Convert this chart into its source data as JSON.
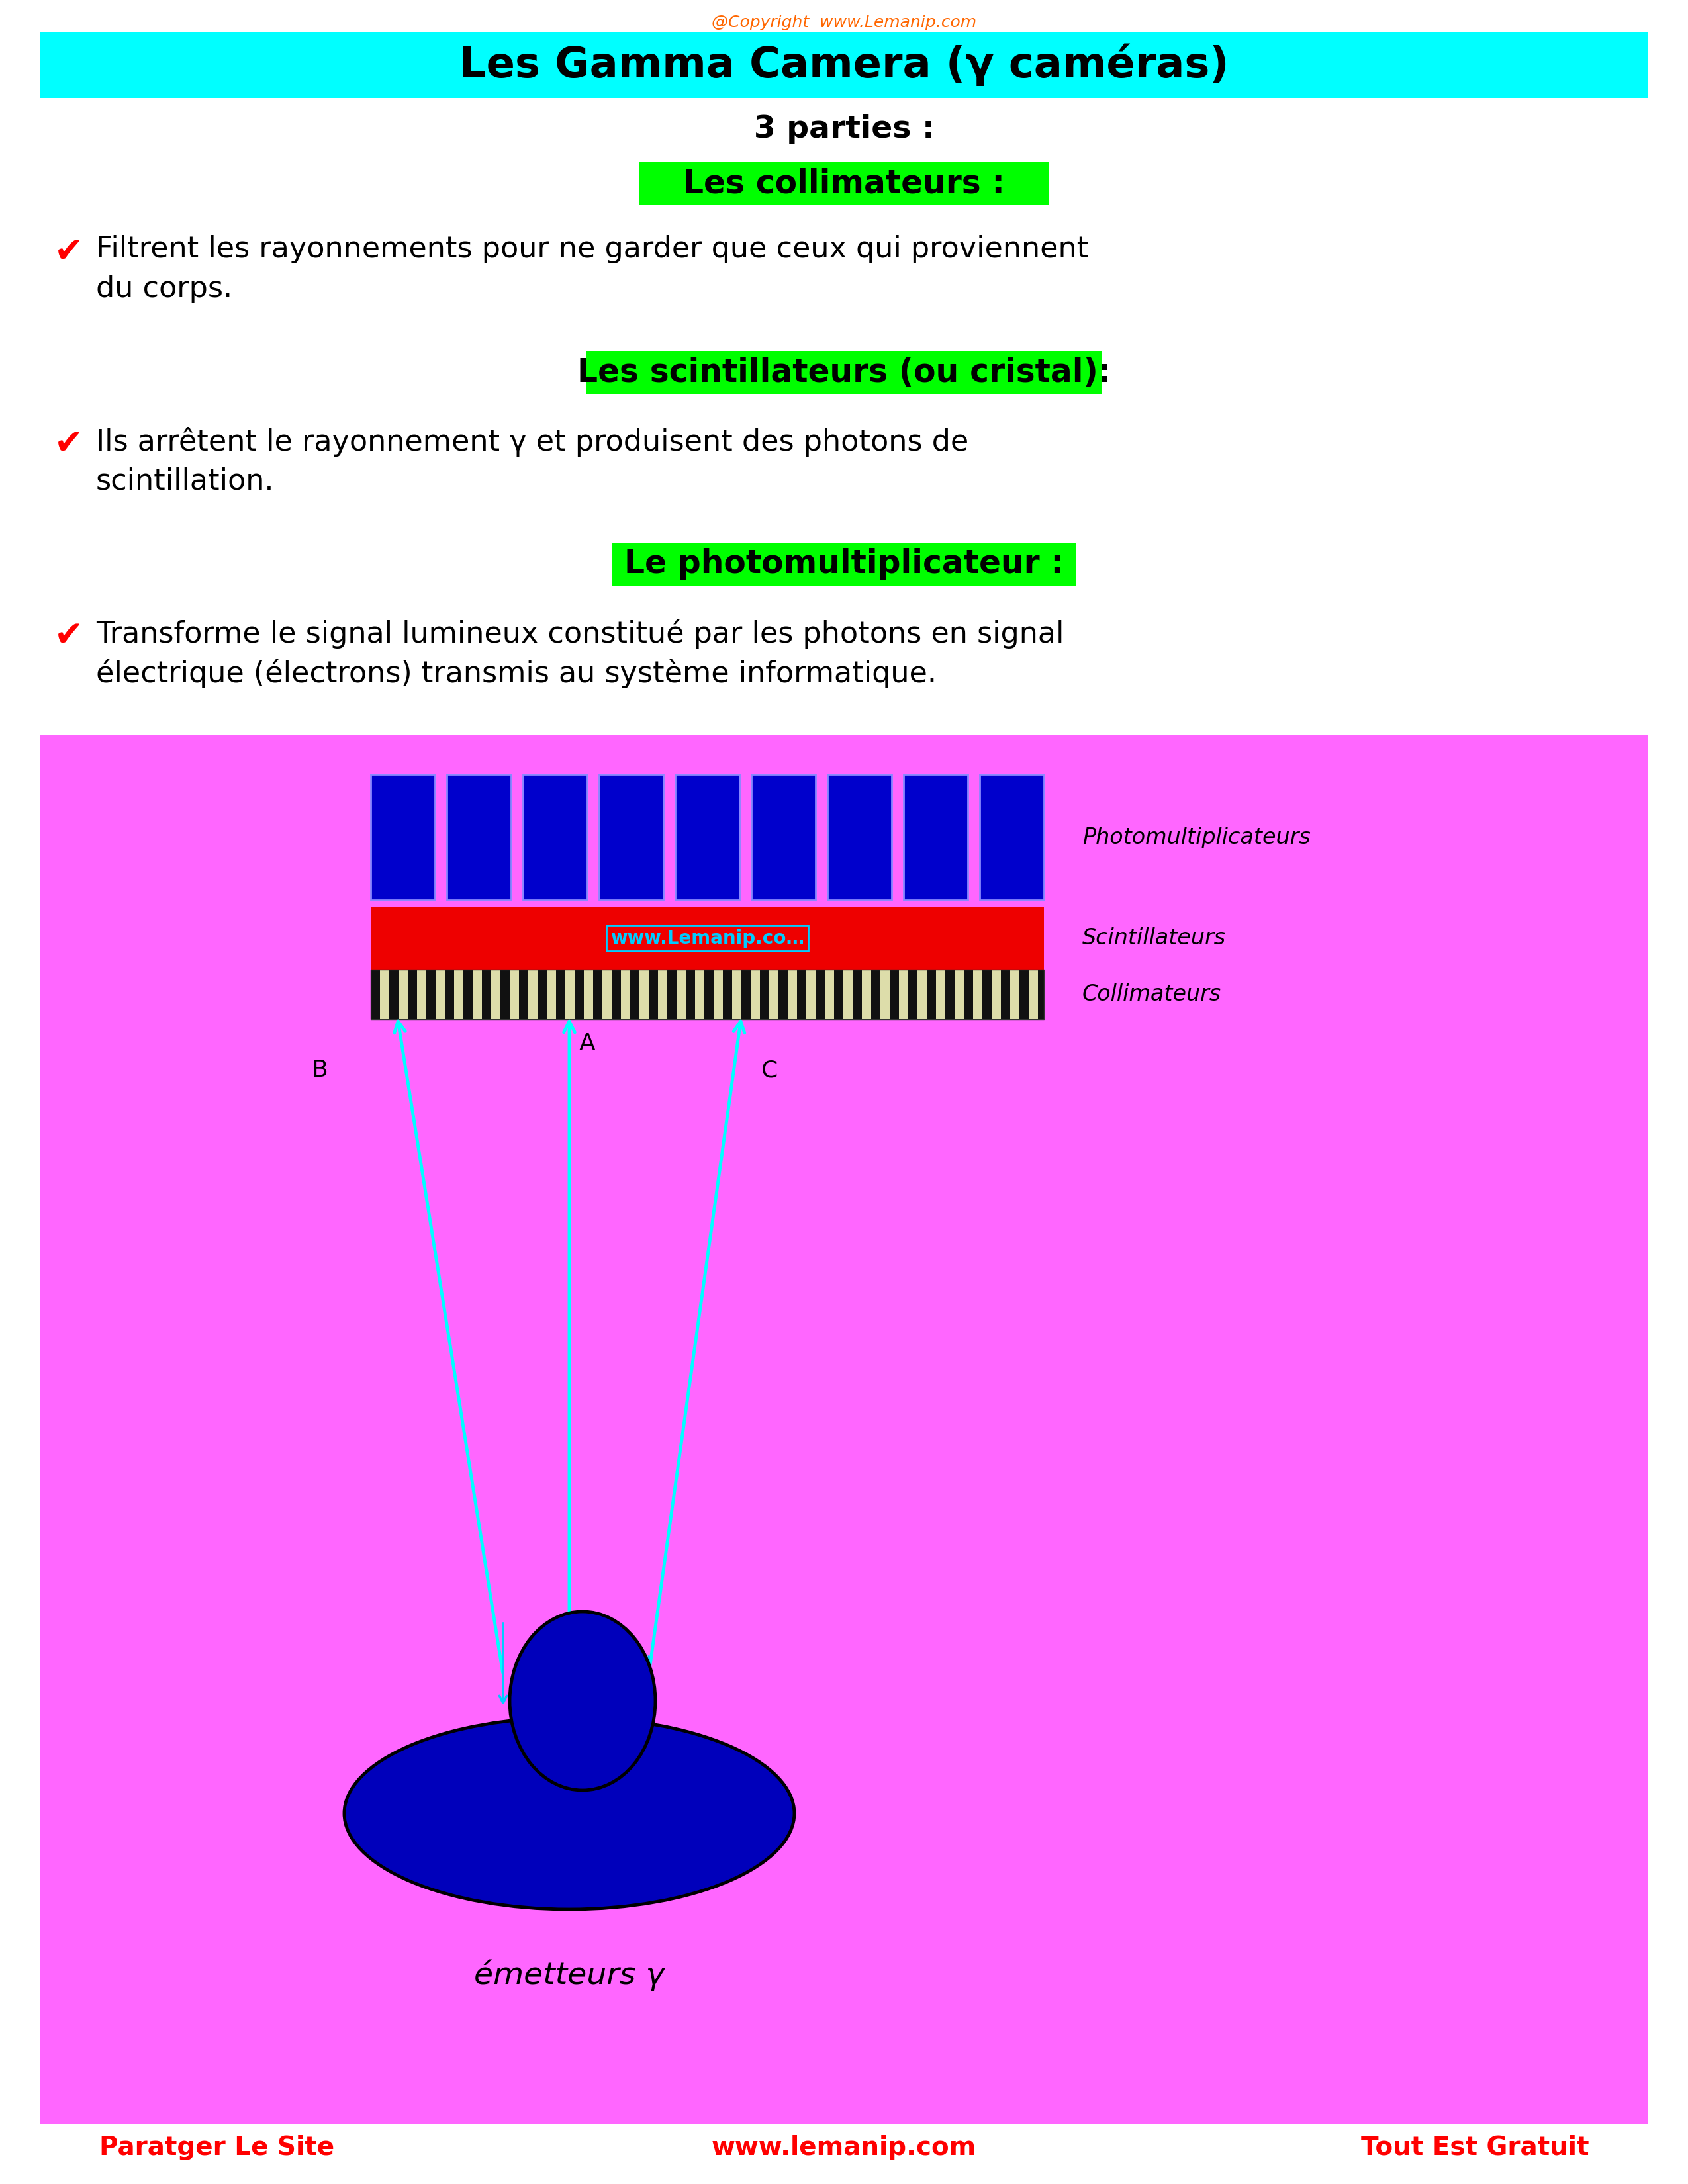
{
  "title": "Les Gamma Camera (γ caméras)",
  "title_bg": "#00FFFF",
  "title_color": "#000000",
  "subtitle": "3 parties :",
  "sections": [
    {
      "header": "Les collimateurs :",
      "header_bg": "#00FF00",
      "header_color": "#000000",
      "line1": "Filtrent les rayonnements pour ne garder que ceux qui proviennent",
      "line2": "du corps."
    },
    {
      "header": "Les scintillateurs (ou cristal):",
      "header_bg": "#00FF00",
      "header_color": "#000000",
      "line1": "Ils arrêtent le rayonnement γ et produisent des photons de",
      "line2": "scintillation."
    },
    {
      "header": "Le photomultiplicateur :",
      "header_bg": "#00FF00",
      "header_color": "#000000",
      "line1": "Transforme le signal lumineux constitué par les photons en signal",
      "line2": "électrique (électrons) transmis au système informatique."
    }
  ],
  "diagram_bg": "#FF66FF",
  "copyright_text": "@Copyright  www.Lemanip.com",
  "copyright_color": "#FF6600",
  "footer_left": "Paratger Le Site",
  "footer_center": "www.lemanip.com",
  "footer_right": "Tout Est Gratuit",
  "footer_color": "#FF0000"
}
